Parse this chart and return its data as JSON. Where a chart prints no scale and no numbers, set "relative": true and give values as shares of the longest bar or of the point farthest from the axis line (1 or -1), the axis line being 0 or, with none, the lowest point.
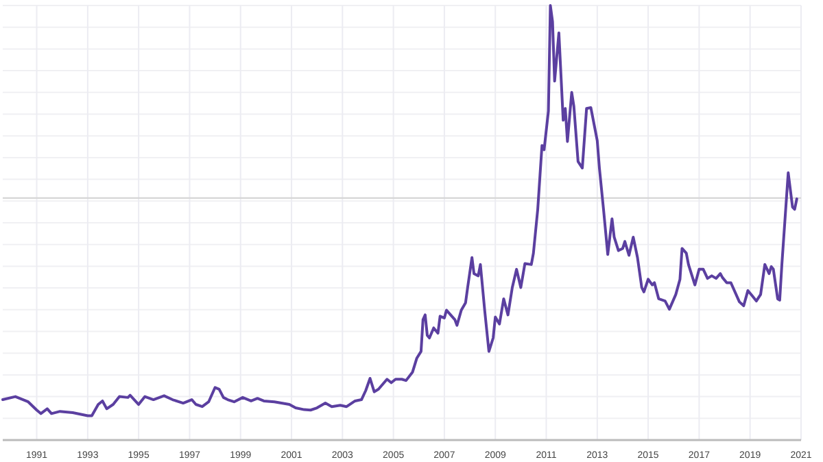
{
  "chart_data": {
    "type": "line",
    "relative": true,
    "x": [
      "1989-09",
      "1990-03",
      "1990-09",
      "1991-01",
      "1991-03",
      "1991-06",
      "1991-08",
      "1991-12",
      "1992-06",
      "1993-01",
      "1993-03",
      "1993-06",
      "1993-08",
      "1993-10",
      "1994-01",
      "1994-04",
      "1994-08",
      "1994-09",
      "1995-01",
      "1995-04",
      "1995-08",
      "1996-01",
      "1996-05",
      "1996-10",
      "1997-02",
      "1997-04",
      "1997-07",
      "1997-10",
      "1998-01",
      "1998-03",
      "1998-05",
      "1998-07",
      "1998-10",
      "1999-02",
      "1999-06",
      "1999-09",
      "1999-12",
      "2000-05",
      "2000-12",
      "2001-03",
      "2001-07",
      "2001-10",
      "2002-01",
      "2002-05",
      "2002-08",
      "2002-12",
      "2003-03",
      "2003-07",
      "2003-10",
      "2003-12",
      "2004-02",
      "2004-04",
      "2004-06",
      "2004-10",
      "2004-12",
      "2005-02",
      "2005-05",
      "2005-07",
      "2005-10",
      "2005-12",
      "2006-02",
      "2006-03",
      "2006-04",
      "2006-05",
      "2006-06",
      "2006-08",
      "2006-10",
      "2006-11",
      "2007-01",
      "2007-02",
      "2007-04",
      "2007-06",
      "2007-07",
      "2007-09",
      "2007-11",
      "2007-12",
      "2008-02",
      "2008-03",
      "2008-05",
      "2008-06",
      "2008-08",
      "2008-10",
      "2008-12",
      "2009-01",
      "2009-03",
      "2009-05",
      "2009-07",
      "2009-09",
      "2009-11",
      "2010-01",
      "2010-03",
      "2010-06",
      "2010-07",
      "2010-09",
      "2010-11",
      "2010-12",
      "2011-02",
      "2011-03",
      "2011-04",
      "2011-05",
      "2011-07",
      "2011-09",
      "2011-10",
      "2011-11",
      "2012-01",
      "2012-02",
      "2012-04",
      "2012-06",
      "2012-08",
      "2012-10",
      "2013-01",
      "2013-02",
      "2013-04",
      "2013-06",
      "2013-08",
      "2013-09",
      "2013-11",
      "2014-01",
      "2014-02",
      "2014-04",
      "2014-06",
      "2014-08",
      "2014-10",
      "2014-11",
      "2015-01",
      "2015-03",
      "2015-04",
      "2015-06",
      "2015-09",
      "2015-11",
      "2016-02",
      "2016-04",
      "2016-05",
      "2016-07",
      "2016-08",
      "2016-11",
      "2017-01",
      "2017-03",
      "2017-05",
      "2017-07",
      "2017-09",
      "2017-11",
      "2017-12",
      "2018-02",
      "2018-04",
      "2018-08",
      "2018-10",
      "2018-12",
      "2019-02",
      "2019-04",
      "2019-06",
      "2019-08",
      "2019-10",
      "2019-11",
      "2019-12",
      "2020-02",
      "2020-03",
      "2020-04",
      "2020-07",
      "2020-09",
      "2020-10",
      "2020-11"
    ],
    "series": [
      {
        "color": "#5b3fa0",
        "values": [
          0.093,
          0.1,
          0.088,
          0.069,
          0.061,
          0.072,
          0.061,
          0.066,
          0.063,
          0.056,
          0.056,
          0.082,
          0.09,
          0.072,
          0.082,
          0.1,
          0.098,
          0.103,
          0.082,
          0.1,
          0.093,
          0.102,
          0.093,
          0.085,
          0.093,
          0.082,
          0.077,
          0.088,
          0.121,
          0.117,
          0.098,
          0.093,
          0.088,
          0.098,
          0.09,
          0.096,
          0.09,
          0.088,
          0.082,
          0.074,
          0.07,
          0.069,
          0.074,
          0.085,
          0.077,
          0.08,
          0.077,
          0.09,
          0.093,
          0.114,
          0.142,
          0.111,
          0.117,
          0.14,
          0.132,
          0.14,
          0.14,
          0.137,
          0.156,
          0.188,
          0.204,
          0.277,
          0.288,
          0.241,
          0.235,
          0.258,
          0.246,
          0.285,
          0.281,
          0.299,
          0.288,
          0.277,
          0.264,
          0.299,
          0.316,
          0.351,
          0.42,
          0.383,
          0.378,
          0.404,
          0.299,
          0.204,
          0.235,
          0.283,
          0.267,
          0.325,
          0.288,
          0.351,
          0.393,
          0.351,
          0.406,
          0.404,
          0.43,
          0.531,
          0.678,
          0.668,
          0.757,
          1.0,
          0.963,
          0.826,
          0.937,
          0.736,
          0.763,
          0.687,
          0.8,
          0.768,
          0.641,
          0.626,
          0.763,
          0.765,
          0.689,
          0.626,
          0.531,
          0.427,
          0.509,
          0.467,
          0.436,
          0.441,
          0.457,
          0.425,
          0.467,
          0.42,
          0.351,
          0.341,
          0.37,
          0.357,
          0.362,
          0.325,
          0.32,
          0.301,
          0.335,
          0.37,
          0.441,
          0.43,
          0.404,
          0.357,
          0.393,
          0.393,
          0.372,
          0.378,
          0.372,
          0.383,
          0.374,
          0.362,
          0.362,
          0.318,
          0.309,
          0.344,
          0.332,
          0.32,
          0.335,
          0.404,
          0.383,
          0.399,
          0.393,
          0.325,
          0.322,
          0.404,
          0.615,
          0.536,
          0.531,
          0.555
        ]
      }
    ],
    "xlim": [
      "1989-09",
      "2021-01"
    ],
    "xticks": [
      "1991",
      "1993",
      "1995",
      "1997",
      "1999",
      "2001",
      "2003",
      "2005",
      "2007",
      "2009",
      "2011",
      "2013",
      "2015",
      "2017",
      "2019",
      "2021"
    ],
    "ref_lines": [
      {
        "axis": "y",
        "value": 0.557,
        "color": "#d6d6d6"
      }
    ],
    "grid": true,
    "marker": "none",
    "line_style": "solid"
  }
}
